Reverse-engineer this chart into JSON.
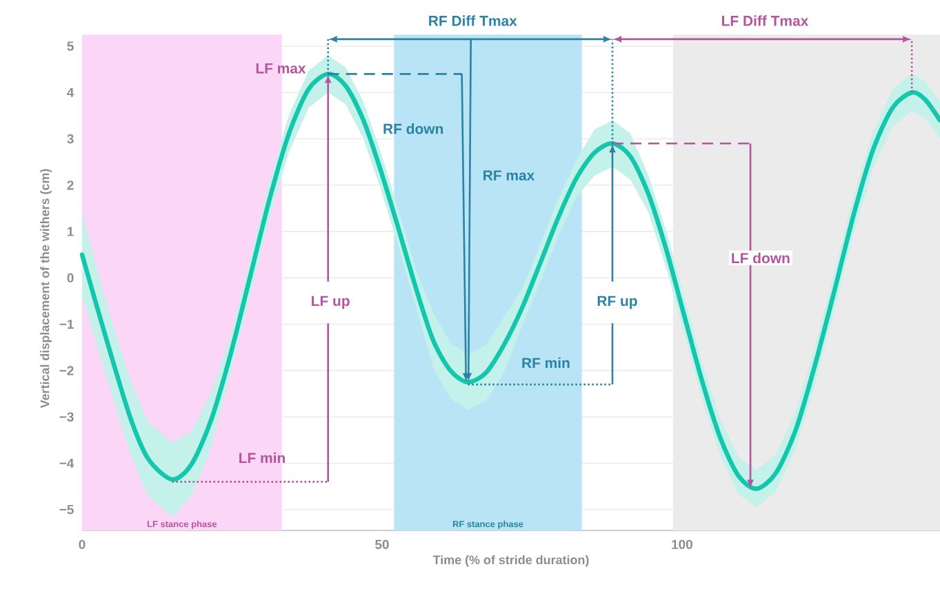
{
  "chart_data": {
    "type": "line",
    "xlabel": "Time (% of stride duration)",
    "ylabel": "Vertical displacement of the withers (cm)",
    "xlim": [
      0,
      143
    ],
    "ylim": [
      -5.45,
      5
    ],
    "xticks": [
      0,
      50,
      100
    ],
    "yticks": [
      {
        "value": -5,
        "label": "−5"
      },
      {
        "value": -4,
        "label": "−4"
      },
      {
        "value": -3,
        "label": "−3"
      },
      {
        "value": -2,
        "label": "−2"
      },
      {
        "value": -1,
        "label": "−1"
      },
      0,
      1,
      2,
      3,
      4,
      5
    ],
    "grid": "y",
    "marker": "none",
    "bands": [
      {
        "axis": "x",
        "from": 0,
        "to": 33.3,
        "label": "LF stance phase",
        "color": "#fcd6f6"
      },
      {
        "axis": "x",
        "from": 52,
        "to": 83.3,
        "label": "RF stance phase",
        "color": "#b8e4f6"
      },
      {
        "axis": "x",
        "from": 98.5,
        "to": 143,
        "color": "#ebebeb"
      }
    ],
    "series": [
      {
        "color": "#14c6ac",
        "line_style": "solid",
        "x": [
          0,
          4,
          8,
          11,
          15,
          18.25,
          21.5,
          24.75,
          28,
          31.25,
          34.5,
          37.75,
          41,
          43.9,
          46.8,
          49.7,
          52.7,
          55.6,
          58.5,
          61.4,
          64.3,
          67.3,
          70.3,
          73.3,
          76.4,
          79.4,
          82.4,
          85.4,
          88.4,
          91.4,
          94.4,
          97.4,
          100.4,
          103.4,
          106.4,
          109.4,
          112.4,
          115.6,
          118.9,
          122.1,
          125.4,
          128.6,
          131.8,
          135.1,
          138.3,
          140.5,
          143
        ],
        "values": [
          0.5,
          -1.3,
          -3.0,
          -3.9,
          -4.35,
          -4.02,
          -3.07,
          -1.65,
          0.02,
          1.7,
          3.12,
          4.07,
          4.4,
          4.15,
          3.43,
          2.35,
          1.08,
          -0.2,
          -1.34,
          -2.0,
          -2.25,
          -2.05,
          -1.45,
          -0.66,
          0.33,
          1.31,
          2.15,
          2.7,
          2.9,
          2.62,
          1.81,
          0.6,
          -0.83,
          -2.25,
          -3.46,
          -4.27,
          -4.55,
          -4.22,
          -3.3,
          -1.91,
          -0.28,
          1.36,
          2.75,
          3.67,
          4.0,
          3.85,
          3.4
        ],
        "upper": [
          1.4,
          -0.5,
          -2.2,
          -3.1,
          -3.55,
          -3.32,
          -2.47,
          -1.25,
          0.42,
          2.1,
          3.52,
          4.47,
          4.8,
          4.55,
          3.83,
          2.75,
          1.48,
          0.2,
          -0.74,
          -1.4,
          -1.65,
          -1.45,
          -0.85,
          -0.26,
          0.73,
          1.71,
          2.55,
          3.2,
          3.4,
          3.12,
          2.21,
          1.0,
          -0.43,
          -1.85,
          -3.06,
          -3.87,
          -4.15,
          -3.82,
          -2.9,
          -1.51,
          0.12,
          1.76,
          3.15,
          4.07,
          4.4,
          4.25,
          3.8
        ],
        "lower": [
          -0.4,
          -2.1,
          -3.8,
          -4.7,
          -5.15,
          -4.72,
          -3.67,
          -2.05,
          -0.38,
          1.3,
          2.72,
          3.67,
          4.0,
          3.75,
          3.03,
          1.95,
          0.68,
          -0.6,
          -1.94,
          -2.6,
          -2.85,
          -2.65,
          -2.05,
          -1.06,
          -0.07,
          0.91,
          1.75,
          2.2,
          2.4,
          2.12,
          1.41,
          0.2,
          -1.23,
          -2.65,
          -3.86,
          -4.67,
          -4.95,
          -4.62,
          -3.7,
          -2.31,
          -0.68,
          0.96,
          2.35,
          3.27,
          3.6,
          3.45,
          3.0
        ]
      }
    ],
    "annotations": [
      "LF max",
      "RF Diff Tmax",
      "LF Diff Tmax",
      "RF down",
      "RF max",
      "LF up",
      "RF up",
      "LF down",
      "RF min",
      "LF min"
    ]
  }
}
